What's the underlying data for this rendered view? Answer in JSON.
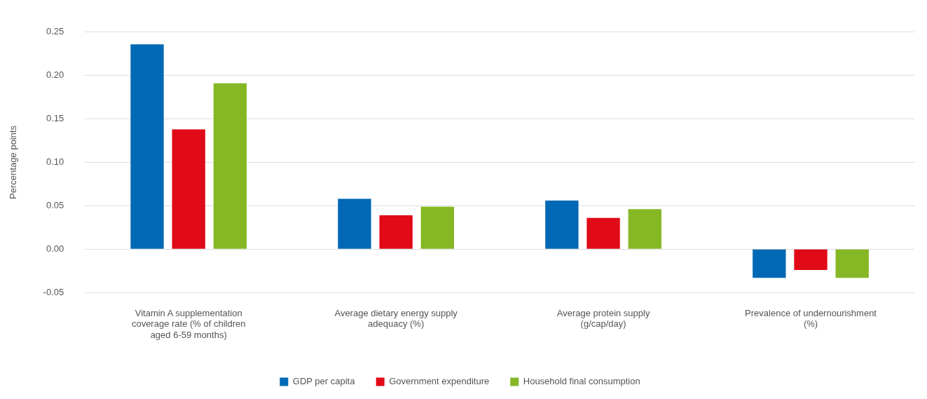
{
  "chart_data": {
    "type": "bar",
    "ylabel": "Percentage points",
    "categories": [
      "Vitamin A supplementation coverage rate (% of children aged 6-59 months)",
      "Average dietary energy supply adequacy (%)",
      "Average protein supply (g/cap/day)",
      "Prevalence of undernourishment (%)"
    ],
    "series": [
      {
        "name": "GDP per capita",
        "color": "#0068b4",
        "values": [
          0.236,
          0.058,
          0.056,
          -0.033
        ]
      },
      {
        "name": "Government expenditure",
        "color": "#e10a17",
        "values": [
          0.138,
          0.039,
          0.036,
          -0.024
        ]
      },
      {
        "name": "Household final consumption",
        "color": "#86b825",
        "values": [
          0.191,
          0.049,
          0.046,
          -0.033
        ]
      }
    ],
    "ylim": [
      -0.05,
      0.25
    ],
    "yticks": [
      {
        "value": -0.05,
        "label": "-0.05"
      },
      {
        "value": 0,
        "label": "0.00"
      },
      {
        "value": 0.05,
        "label": "0.05"
      },
      {
        "value": 0.1,
        "label": "0.10"
      },
      {
        "value": 0.15,
        "label": "0.15"
      },
      {
        "value": 0.2,
        "label": "0.20"
      },
      {
        "value": 0.25,
        "label": "0.25"
      }
    ],
    "grid": "y",
    "legend": "bottom"
  }
}
